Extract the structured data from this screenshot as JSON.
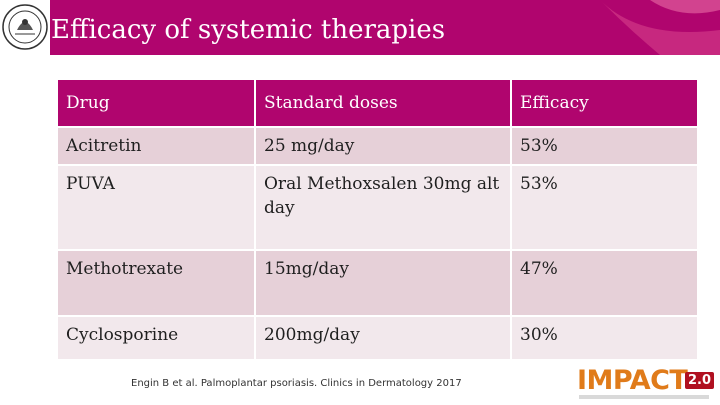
{
  "slide": {
    "title": "Efficacy of systemic therapies",
    "accent_color": "#b0056e"
  },
  "table": {
    "headers": [
      "Drug",
      "Standard doses",
      "Efficacy"
    ],
    "rows": [
      [
        "Acitretin",
        "25 mg/day",
        "53%"
      ],
      [
        "PUVA",
        "Oral Methoxsalen 30mg alt day",
        "53%"
      ],
      [
        "Methotrexate",
        "15mg/day",
        "47%"
      ],
      [
        "Cyclosporine",
        "200mg/day",
        "30%"
      ]
    ]
  },
  "citation": "Engin B et al. Palmoplantar psoriasis. Clinics in Dermatology 2017",
  "logos": {
    "left_icon": "institution-seal-icon",
    "right_brand": "IMPACT",
    "right_version": "2.0"
  }
}
